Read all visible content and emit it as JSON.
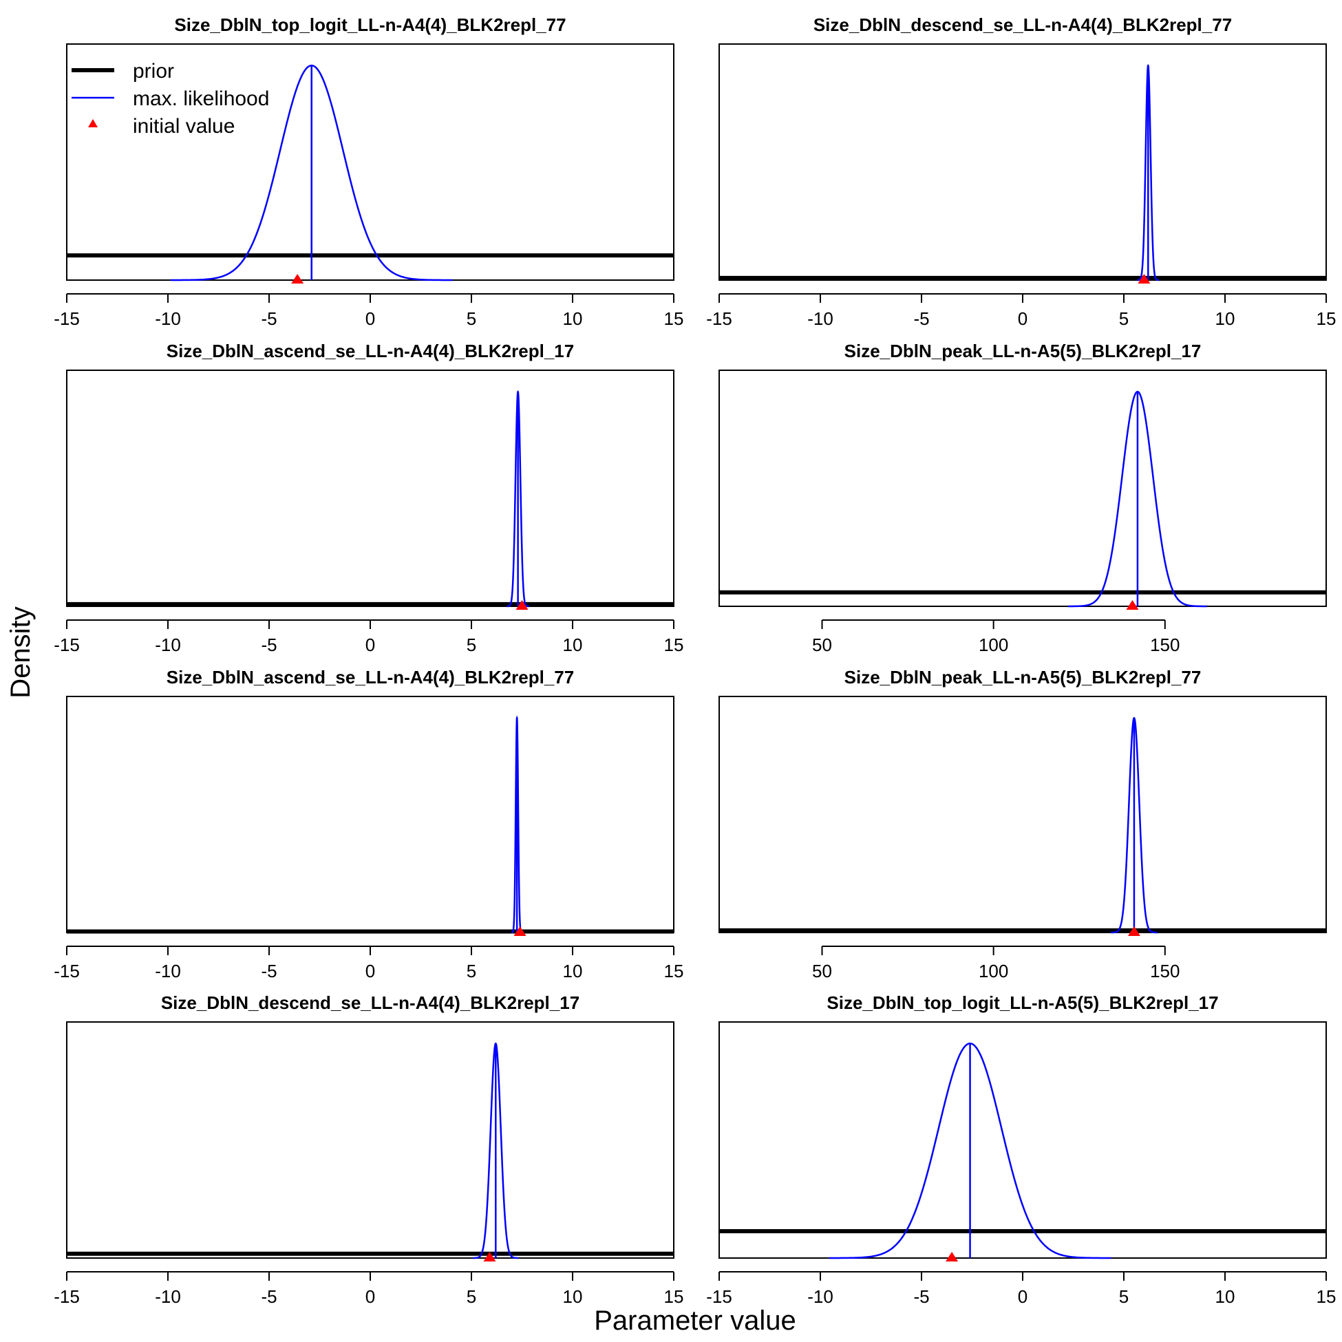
{
  "figure": {
    "ylabel": "Density",
    "xlabel": "Parameter value"
  },
  "legend": {
    "location": "top-left of first panel",
    "items": [
      {
        "label": "prior",
        "style": "thick-black-line",
        "color": "#000000"
      },
      {
        "label": "max. likelihood",
        "style": "thin-blue-line",
        "color": "#0000FF"
      },
      {
        "label": "initial value",
        "style": "red-triangle",
        "color": "#FF0000"
      }
    ]
  },
  "colors": {
    "prior": "#000000",
    "likelihood": "#0000FF",
    "initial": "#FF0000"
  },
  "chart_data": [
    {
      "type": "line",
      "title": "Size_DblN_top_logit_LL-n-A4(4)_BLK2repl_77",
      "xlim": [
        -15,
        15
      ],
      "xticks": [
        -15,
        -10,
        -5,
        0,
        5,
        10,
        15
      ],
      "ylim": [
        0,
        1.1
      ],
      "prior_level": 0.115,
      "mle": 2.9,
      "mle_neg": true,
      "sd": 1.55,
      "initial_value": -3.6
    },
    {
      "type": "line",
      "title": "Size_DblN_descend_se_LL-n-A4(4)_BLK2repl_77",
      "xlim": [
        -15,
        15
      ],
      "xticks": [
        -15,
        -10,
        -5,
        0,
        5,
        10,
        15
      ],
      "ylim": [
        0,
        1.1
      ],
      "prior_level": 0.01,
      "mle": 6.2,
      "sd": 0.12,
      "initial_value": 6.0
    },
    {
      "type": "line",
      "title": "Size_DblN_ascend_se_LL-n-A4(4)_BLK2repl_17",
      "xlim": [
        -15,
        15
      ],
      "xticks": [
        -15,
        -10,
        -5,
        0,
        5,
        10,
        15
      ],
      "ylim": [
        0,
        1.1
      ],
      "prior_level": 0.01,
      "mle": 7.3,
      "sd": 0.12,
      "initial_value": 7.5
    },
    {
      "type": "line",
      "title": "Size_DblN_peak_LL-n-A5(5)_BLK2repl_17",
      "xlim": [
        20,
        197
      ],
      "xticks": [
        50,
        100,
        150
      ],
      "ylim": [
        0,
        1.1
      ],
      "prior_level": 0.065,
      "mle": 142,
      "sd": 4.5,
      "initial_value": 140.5
    },
    {
      "type": "line",
      "title": "Size_DblN_ascend_se_LL-n-A4(4)_BLK2repl_77",
      "xlim": [
        -15,
        15
      ],
      "xticks": [
        -15,
        -10,
        -5,
        0,
        5,
        10,
        15
      ],
      "ylim": [
        0,
        1.1
      ],
      "prior_level": 0.005,
      "mle": 7.25,
      "sd": 0.06,
      "initial_value": 7.4
    },
    {
      "type": "line",
      "title": "Size_DblN_peak_LL-n-A5(5)_BLK2repl_77",
      "xlim": [
        20,
        197
      ],
      "xticks": [
        50,
        100,
        150
      ],
      "ylim": [
        0,
        1.1
      ],
      "prior_level": 0.01,
      "mle": 141,
      "sd": 1.5,
      "initial_value": 141
    },
    {
      "type": "line",
      "title": "Size_DblN_descend_se_LL-n-A4(4)_BLK2repl_17",
      "xlim": [
        -15,
        15
      ],
      "xticks": [
        -15,
        -10,
        -5,
        0,
        5,
        10,
        15
      ],
      "ylim": [
        0,
        1.1
      ],
      "prior_level": 0.02,
      "mle": 6.2,
      "sd": 0.25,
      "initial_value": 5.9
    },
    {
      "type": "line",
      "title": "Size_DblN_top_logit_LL-n-A5(5)_BLK2repl_17",
      "xlim": [
        -15,
        15
      ],
      "xticks": [
        -15,
        -10,
        -5,
        0,
        5,
        10,
        15
      ],
      "ylim": [
        0,
        1.1
      ],
      "prior_level": 0.125,
      "mle": 2.6,
      "mle_neg": true,
      "sd": 1.55,
      "initial_value": -3.5
    }
  ]
}
